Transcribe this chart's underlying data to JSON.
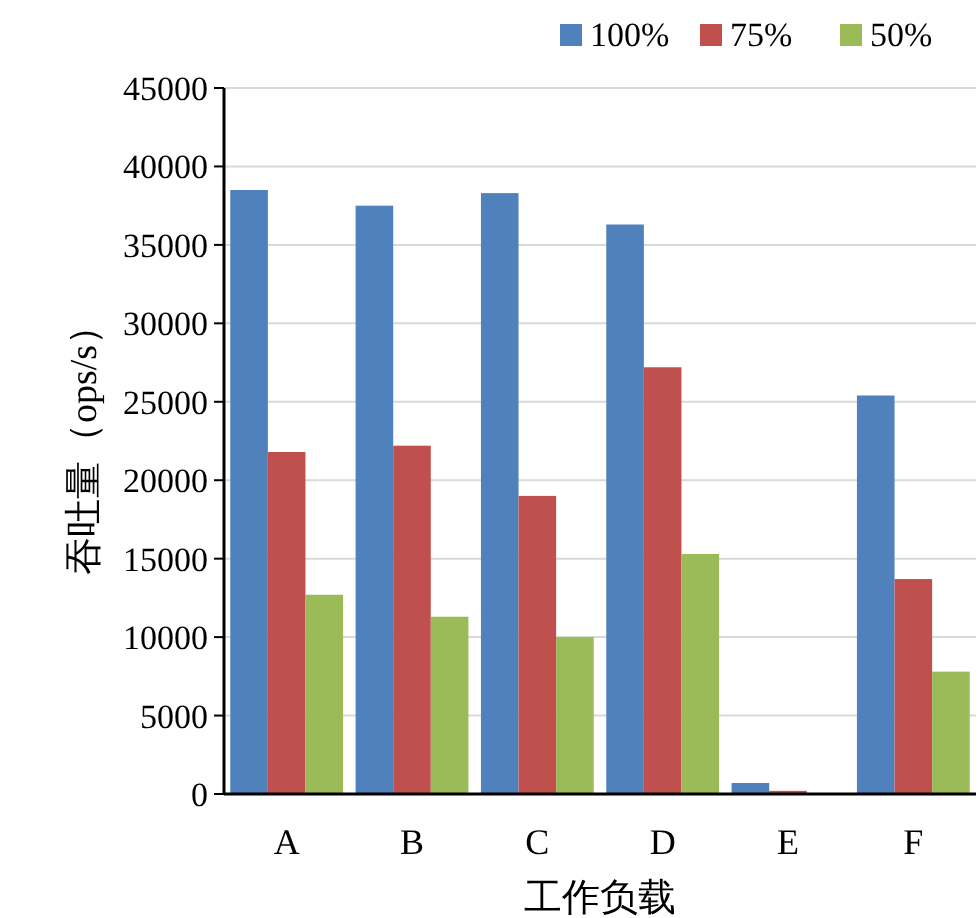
{
  "chart_data": {
    "type": "bar",
    "xlabel": "工作负载",
    "ylabel": "吞吐量（ops/s）",
    "categories": [
      "A",
      "B",
      "C",
      "D",
      "E",
      "F"
    ],
    "series": [
      {
        "name": "100%",
        "color": "#4f81bd",
        "values": [
          38500,
          37500,
          38300,
          36300,
          700,
          25400
        ]
      },
      {
        "name": "75%",
        "color": "#c0504d",
        "values": [
          21800,
          22200,
          19000,
          27200,
          200,
          13700
        ]
      },
      {
        "name": "50%",
        "color": "#9bbb59",
        "values": [
          12700,
          11300,
          10000,
          15300,
          0,
          7800
        ]
      }
    ],
    "ylim": [
      0,
      45000
    ],
    "yticks": [
      0,
      5000,
      10000,
      15000,
      20000,
      25000,
      30000,
      35000,
      40000,
      45000
    ],
    "grid": "y",
    "legend": "top right"
  }
}
